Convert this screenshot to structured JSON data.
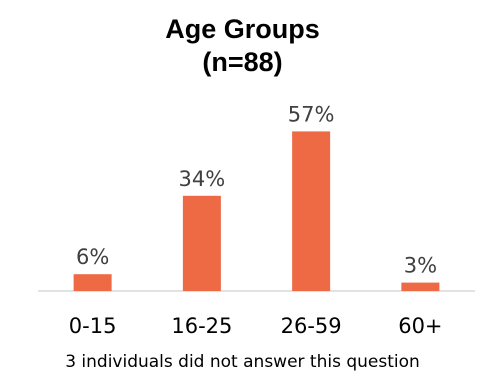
{
  "chart_data": {
    "type": "bar",
    "title": [
      "Age Groups",
      "(n=88)"
    ],
    "categories": [
      "0-15",
      "16-25",
      "26-59",
      "60+"
    ],
    "values": [
      6,
      34,
      57,
      3
    ],
    "data_labels": [
      "6%",
      "34%",
      "57%",
      "3%"
    ],
    "unit": "%",
    "ylim": [
      0,
      60
    ],
    "grid": false,
    "legend": "none",
    "bar_color": "#ED6A45",
    "axis_color": "#D9D9D9"
  },
  "footnote": "3 individuals did not answer this question"
}
